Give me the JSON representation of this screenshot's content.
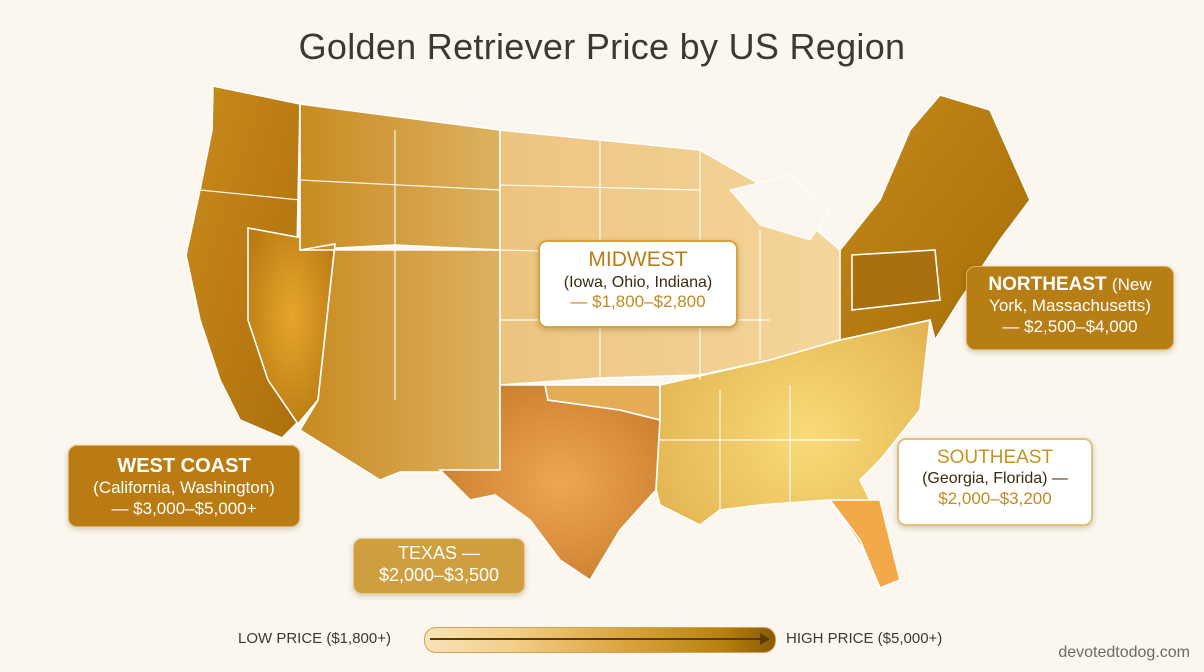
{
  "title": "Golden Retriever Price by US Region",
  "callouts": {
    "west": {
      "heading": "WEST COAST",
      "sub": "(California, Washington)",
      "price": "— $3,000–$5,000+"
    },
    "texas": {
      "heading": "TEXAS —",
      "price": "$2,000–$3,500"
    },
    "midwest": {
      "heading": "MIDWEST",
      "sub": "(Iowa, Ohio, Indiana)",
      "price": "— $1,800–$2,800"
    },
    "northeast": {
      "heading": "NORTHEAST",
      "heading_rest": "(New",
      "sub": "York, Massachusetts)",
      "price": "— $2,500–$4,000"
    },
    "southeast": {
      "heading": "SOUTHEAST",
      "sub": "(Georgia, Florida) —",
      "price": "$2,000–$3,200"
    }
  },
  "legend": {
    "low": "LOW PRICE ($1,800+)",
    "high": "HIGH PRICE ($5,000+)"
  },
  "credit": "devotedtodog.com",
  "colors": {
    "west": "#b97b12",
    "texas": "#d08c3a",
    "midwest": "#f0cc8a",
    "northeast": "#b77e16",
    "southeast": "#f5cf6a"
  }
}
